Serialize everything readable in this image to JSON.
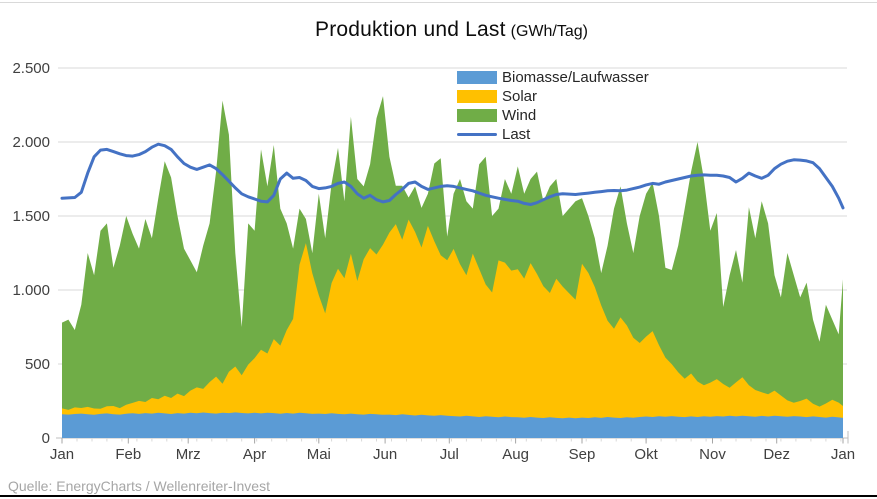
{
  "title": {
    "main": "Produktion und Last",
    "unit": "(GWh/Tag)"
  },
  "source": {
    "text": "Quelle: EnergyCharts / Wellenreiter-Invest"
  },
  "chart_data": {
    "type": "area",
    "stacked": true,
    "title": "Produktion und Last (GWh/Tag)",
    "unit": "GWh/Tag",
    "grid": "horizontal",
    "legend_position": "inside-top-center",
    "ylim": [
      0,
      2500
    ],
    "y_tick_values": [
      0,
      500,
      1000,
      1500,
      2000,
      2500
    ],
    "y_tick_labels": [
      "0",
      "500",
      "1.000",
      "1.500",
      "2.000",
      "2.500"
    ],
    "x_tick_labels": [
      "Jan",
      "Feb",
      "Mrz",
      "Apr",
      "Mai",
      "Jun",
      "Jul",
      "Aug",
      "Sep",
      "Okt",
      "Nov",
      "Dez",
      "Jan"
    ],
    "month_start_days": [
      0,
      31,
      59,
      90,
      120,
      151,
      181,
      212,
      243,
      273,
      304,
      334,
      365
    ],
    "days": [
      0,
      3,
      6,
      9,
      12,
      15,
      18,
      21,
      24,
      27,
      30,
      33,
      36,
      39,
      42,
      45,
      48,
      51,
      54,
      57,
      60,
      63,
      66,
      69,
      72,
      75,
      78,
      81,
      84,
      87,
      90,
      93,
      96,
      99,
      102,
      105,
      108,
      111,
      114,
      117,
      120,
      123,
      126,
      129,
      132,
      135,
      138,
      141,
      144,
      147,
      150,
      153,
      156,
      159,
      162,
      165,
      168,
      171,
      174,
      177,
      180,
      183,
      186,
      189,
      192,
      195,
      198,
      201,
      204,
      207,
      210,
      213,
      216,
      219,
      222,
      225,
      228,
      231,
      234,
      237,
      240,
      243,
      246,
      249,
      252,
      255,
      258,
      261,
      264,
      267,
      270,
      273,
      276,
      279,
      282,
      285,
      288,
      291,
      294,
      297,
      300,
      303,
      306,
      309,
      312,
      315,
      318,
      321,
      324,
      327,
      330,
      333,
      336,
      339,
      342,
      345,
      348,
      351,
      354,
      357,
      360,
      363,
      365
    ],
    "series": [
      {
        "name": "Biomasse/Laufwasser",
        "type": "area",
        "color": "#5B9BD5",
        "values": [
          160,
          158,
          162,
          165,
          160,
          157,
          163,
          166,
          161,
          158,
          164,
          167,
          163,
          168,
          165,
          170,
          166,
          162,
          168,
          165,
          170,
          167,
          172,
          168,
          165,
          171,
          168,
          173,
          169,
          166,
          170,
          166,
          171,
          168,
          164,
          169,
          165,
          170,
          167,
          163,
          165,
          162,
          167,
          163,
          160,
          165,
          161,
          158,
          163,
          160,
          157,
          158,
          155,
          160,
          156,
          152,
          157,
          153,
          150,
          155,
          151,
          148,
          145,
          150,
          146,
          142,
          147,
          143,
          140,
          145,
          141,
          140,
          137,
          142,
          138,
          135,
          140,
          136,
          133,
          138,
          134,
          138,
          135,
          140,
          136,
          142,
          138,
          135,
          140,
          137,
          142,
          145,
          142,
          147,
          143,
          148,
          144,
          141,
          146,
          142,
          147,
          144,
          148,
          145,
          150,
          146,
          151,
          147,
          144,
          149,
          145,
          150,
          147,
          144,
          148,
          145,
          141,
          146,
          142,
          138,
          143,
          139,
          136
        ]
      },
      {
        "name": "Solar",
        "type": "area",
        "color": "#FFC000",
        "values": [
          40,
          32,
          45,
          38,
          50,
          42,
          35,
          48,
          55,
          44,
          60,
          70,
          88,
          75,
          105,
          92,
          120,
          108,
          132,
          118,
          150,
          175,
          160,
          210,
          250,
          195,
          280,
          310,
          255,
          330,
          370,
          430,
          400,
          500,
          460,
          560,
          640,
          1000,
          1150,
          950,
          800,
          680,
          880,
          980,
          920,
          1080,
          900,
          1050,
          1120,
          1080,
          1150,
          1230,
          1290,
          1180,
          1320,
          1240,
          1130,
          1280,
          1180,
          1080,
          1050,
          1130,
          1030,
          950,
          1100,
          1000,
          890,
          840,
          1060,
          1040,
          990,
          1000,
          940,
          1040,
          970,
          890,
          840,
          940,
          890,
          840,
          800,
          1040,
          980,
          880,
          760,
          650,
          600,
          680,
          620,
          540,
          500,
          540,
          580,
          480,
          400,
          350,
          300,
          260,
          290,
          240,
          210,
          230,
          250,
          220,
          190,
          230,
          260,
          210,
          180,
          160,
          150,
          170,
          140,
          110,
          90,
          105,
          125,
          85,
          70,
          95,
          115,
          100,
          80
        ]
      },
      {
        "name": "Wind",
        "type": "area",
        "color": "#70AD47",
        "values": [
          580,
          610,
          523,
          697,
          1040,
          901,
          1202,
          1236,
          934,
          1098,
          1276,
          1143,
          1029,
          1237,
          1080,
          1358,
          1584,
          1490,
          1200,
          997,
          880,
          778,
          968,
          1072,
          1385,
          1914,
          1602,
          767,
          326,
          954,
          860,
          1354,
          1129,
          1312,
          926,
          721,
          475,
          380,
          163,
          137,
          685,
          508,
          673,
          817,
          520,
          925,
          689,
          492,
          567,
          920,
          1003,
          512,
          260,
          365,
          149,
          308,
          268,
          217,
          525,
          655,
          160,
          372,
          575,
          500,
          304,
          708,
          863,
          517,
          350,
          565,
          519,
          695,
          573,
          568,
          692,
          575,
          720,
          674,
          477,
          572,
          666,
          442,
          385,
          330,
          219,
          508,
          812,
          885,
          690,
          573,
          858,
          965,
          1003,
          873,
          607,
          637,
          856,
          1149,
          1364,
          1618,
          1393,
          1026,
          1122,
          520,
          760,
          894,
          639,
          1203,
          1026,
          1291,
          1155,
          780,
          663,
          996,
          862,
          700,
          784,
          569,
          438,
          667,
          542,
          461,
          857
        ]
      },
      {
        "name": "Last",
        "type": "line",
        "color": "#4472C4",
        "values": [
          1620,
          1622,
          1625,
          1660,
          1790,
          1900,
          1945,
          1950,
          1935,
          1920,
          1908,
          1905,
          1915,
          1935,
          1965,
          1985,
          1975,
          1950,
          1900,
          1855,
          1830,
          1815,
          1830,
          1845,
          1820,
          1780,
          1735,
          1690,
          1650,
          1630,
          1615,
          1600,
          1595,
          1640,
          1750,
          1790,
          1755,
          1760,
          1740,
          1700,
          1685,
          1690,
          1700,
          1720,
          1730,
          1700,
          1650,
          1620,
          1640,
          1610,
          1595,
          1605,
          1645,
          1680,
          1720,
          1730,
          1700,
          1680,
          1690,
          1700,
          1705,
          1700,
          1690,
          1680,
          1670,
          1655,
          1640,
          1630,
          1620,
          1612,
          1605,
          1600,
          1585,
          1578,
          1590,
          1610,
          1630,
          1645,
          1650,
          1648,
          1645,
          1650,
          1655,
          1660,
          1665,
          1670,
          1672,
          1670,
          1675,
          1685,
          1695,
          1710,
          1720,
          1715,
          1730,
          1740,
          1750,
          1760,
          1770,
          1775,
          1778,
          1775,
          1775,
          1770,
          1760,
          1730,
          1755,
          1790,
          1770,
          1755,
          1775,
          1820,
          1850,
          1870,
          1880,
          1878,
          1872,
          1860,
          1820,
          1760,
          1700,
          1620,
          1555
        ]
      }
    ]
  }
}
